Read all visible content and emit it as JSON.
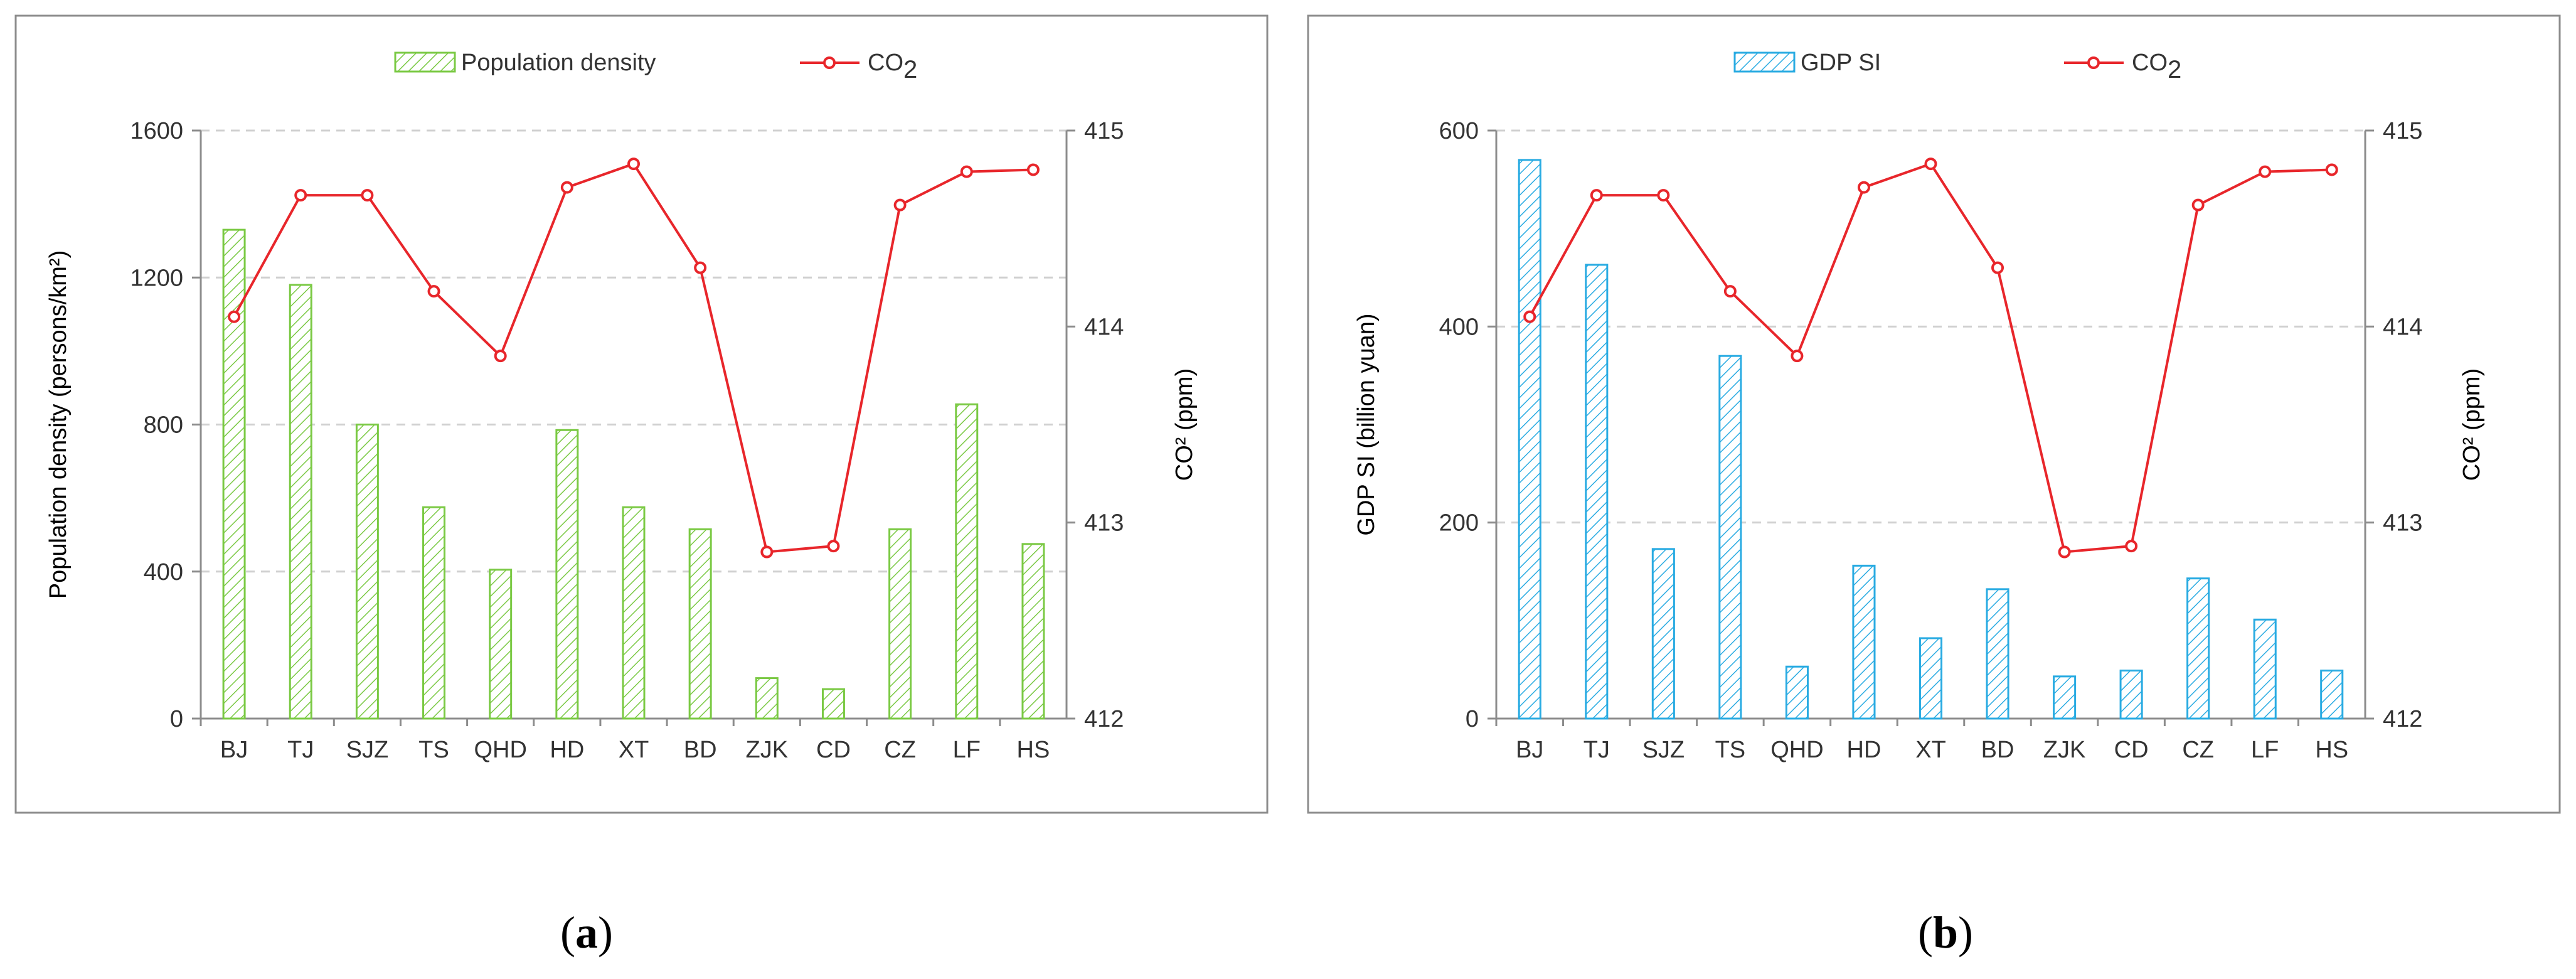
{
  "captions": [
    "a",
    "b"
  ],
  "chart_data": [
    {
      "id": "a",
      "type": "bar+line",
      "categories": [
        "BJ",
        "TJ",
        "SJZ",
        "TS",
        "QHD",
        "HD",
        "XT",
        "BD",
        "ZJK",
        "CD",
        "CZ",
        "LF",
        "HS"
      ],
      "bar_series": {
        "name": "Population density",
        "values": [
          1330,
          1180,
          800,
          575,
          405,
          785,
          575,
          515,
          110,
          80,
          515,
          855,
          475
        ],
        "color": "#7ac943",
        "hatch": true
      },
      "line_series": {
        "name": "CO",
        "name_subscript": "2",
        "values": [
          414.05,
          414.67,
          414.67,
          414.18,
          413.85,
          414.71,
          414.83,
          414.3,
          412.85,
          412.88,
          414.62,
          414.79,
          414.8
        ],
        "color": "#e8262b"
      },
      "ylabel_left": "Population density (persons/km²)",
      "ylabel_right": "CO² (ppm)",
      "ylim_left": [
        0,
        1600
      ],
      "yticks_left": [
        "0",
        "400",
        "800",
        "1200",
        "1600"
      ],
      "ylim_right": [
        412,
        415
      ],
      "yticks_right": [
        "412",
        "413",
        "414",
        "415"
      ],
      "grid": "horizontal dashed",
      "legend": "top-center"
    },
    {
      "id": "b",
      "type": "bar+line",
      "categories": [
        "BJ",
        "TJ",
        "SJZ",
        "TS",
        "QHD",
        "HD",
        "XT",
        "BD",
        "ZJK",
        "CD",
        "CZ",
        "LF",
        "HS"
      ],
      "bar_series": {
        "name": "GDP SI",
        "values": [
          570,
          463,
          173,
          370,
          53,
          156,
          82,
          132,
          43,
          49,
          143,
          101,
          49
        ],
        "color": "#29abe2",
        "hatch": true
      },
      "line_series": {
        "name": "CO",
        "name_subscript": "2",
        "values": [
          414.05,
          414.67,
          414.67,
          414.18,
          413.85,
          414.71,
          414.83,
          414.3,
          412.85,
          412.88,
          414.62,
          414.79,
          414.8
        ],
        "color": "#e8262b"
      },
      "ylabel_left": "GDP SI  (billion yuan)",
      "ylabel_right": "CO² (ppm)",
      "ylim_left": [
        0,
        600
      ],
      "yticks_left": [
        "0",
        "200",
        "400",
        "600"
      ],
      "ylim_right": [
        412,
        415
      ],
      "yticks_right": [
        "412",
        "413",
        "414",
        "415"
      ],
      "grid": "horizontal dashed",
      "legend": "top-center"
    }
  ]
}
